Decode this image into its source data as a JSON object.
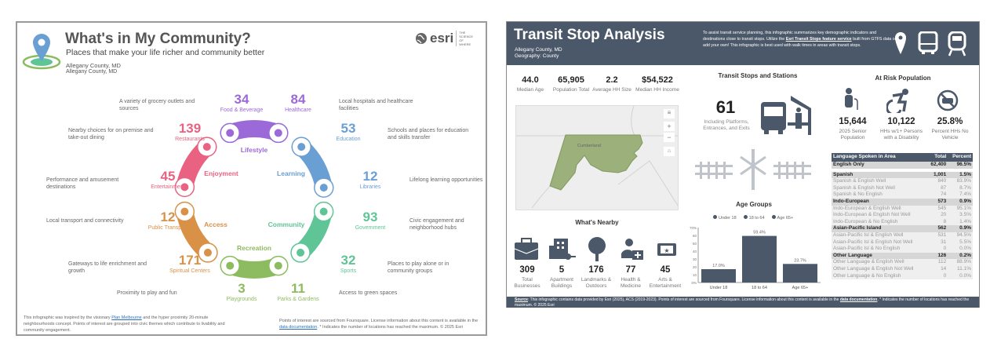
{
  "community": {
    "title": "What's in My Community?",
    "subtitle": "Places that make your life richer and community better",
    "location1": "Allegany County, MD",
    "location2": "Allegany County, MD",
    "logo_text": "esri",
    "logo_tagline": "THE SCIENCE OF WHERE",
    "themes": {
      "lifestyle": "Lifestyle",
      "learning": "Learning",
      "community": "Community",
      "recreation": "Recreation",
      "access": "Access",
      "enjoyment": "Enjoyment"
    },
    "items": [
      {
        "count": "34",
        "label": "Food & Beverage",
        "desc": "A variety of grocery outlets and sources"
      },
      {
        "count": "84",
        "label": "Healthcare",
        "desc": "Local hospitals and healthcare facilities"
      },
      {
        "count": "139",
        "label": "Restaurants",
        "desc": "Nearby choices for on premise and take-out dining"
      },
      {
        "count": "53",
        "label": "Education",
        "desc": "Schools and places for education and skills transfer"
      },
      {
        "count": "45",
        "label": "Entertainment",
        "desc": "Performance and amusement destinations"
      },
      {
        "count": "12",
        "label": "Libraries",
        "desc": "Lifelong learning opportunities"
      },
      {
        "count": "12",
        "label": "Public Transport",
        "desc": "Local transport and connectivity"
      },
      {
        "count": "93",
        "label": "Government",
        "desc": "Civic engagement and neighborhood hubs"
      },
      {
        "count": "171",
        "label": "Spiritual Centers",
        "desc": "Gateways to life enrichment and growth"
      },
      {
        "count": "32",
        "label": "Sports",
        "desc": "Places to play alone or in community groups"
      },
      {
        "count": "3",
        "label": "Playgrounds",
        "desc": "Proximity to play and fun"
      },
      {
        "count": "11",
        "label": "Parks & Gardens",
        "desc": "Access to green spaces"
      }
    ],
    "footer_left_pre": "This infographic was inspired by the visionary ",
    "footer_left_link": "Plan Melbourne",
    "footer_left_post": " and the hyper proximity 20-minute neighbourhoods concept. Points of interest are grouped into civic themes which contribute to livability and community engagement.",
    "footer_right_pre": "Points of interest are sourced from Foursquare. License information about this content is available in the ",
    "footer_right_link": "data documentation",
    "footer_right_post": ". * Indicates the number of locations has reached the maximum. © 2025 Esri",
    "colors": {
      "lifestyle": "#9b69d8",
      "learning": "#6a9fd3",
      "community": "#5fc597",
      "recreation": "#8cbc5f",
      "access": "#d99148",
      "enjoyment": "#ea6282"
    }
  },
  "transit": {
    "title": "Transit Stop Analysis",
    "location": "Allegany County, MD",
    "geography": "Geography: County",
    "intro_pre": "To assist transit service planning, this infographic summarizes key demographic indicators and destinations close to transit stops. Utilize the ",
    "intro_link": "Esri Transit Stops feature service",
    "intro_post": " built from GTFS data or add your own! This infographic is best used with walk times in areas with transit stops.",
    "stats": [
      {
        "value": "44.0",
        "label": "Median Age"
      },
      {
        "value": "65,905",
        "label": "Population Total"
      },
      {
        "value": "2.2",
        "label": "Average HH Size"
      },
      {
        "value": "$54,522",
        "label": "Median HH Income"
      }
    ],
    "map_label": "Cumberland",
    "stops_title": "Transit Stops and Stations",
    "stops_count": "61",
    "stops_label": "Including Platforms, Entrances, and Exits",
    "risk_title": "At Risk Population",
    "risk": [
      {
        "value": "15,644",
        "label": "2025 Senior Population"
      },
      {
        "value": "10,122",
        "label": "HHs w/1+ Persons with a Disability"
      },
      {
        "value": "25.8%",
        "label": "Percent HHs No Vehicle"
      }
    ],
    "nearby_title": "What's Nearby",
    "nearby": [
      {
        "value": "309",
        "label": "Total Businesses"
      },
      {
        "value": "5",
        "label": "Apartment Buildings"
      },
      {
        "value": "176",
        "label": "Landmarks & Outdoors"
      },
      {
        "value": "77",
        "label": "Health & Medicine"
      },
      {
        "value": "45",
        "label": "Arts & Entertainment"
      }
    ],
    "language": {
      "headers": [
        "Language Spoken in Area",
        "Total",
        "Percent"
      ],
      "rows": [
        {
          "t": "g",
          "name": "English Only",
          "total": "62,400",
          "pct": "96.5%"
        },
        {
          "t": "gap"
        },
        {
          "t": "g",
          "name": "Spanish",
          "total": "1,001",
          "pct": "1.5%"
        },
        {
          "t": "s",
          "name": "Spanish & English Well",
          "total": "840",
          "pct": "83.9%"
        },
        {
          "t": "s",
          "name": "Spanish & English Not Well",
          "total": "87",
          "pct": "8.7%"
        },
        {
          "t": "s",
          "name": "Spanish & No English",
          "total": "74",
          "pct": "7.4%"
        },
        {
          "t": "g",
          "name": "Indo-European",
          "total": "573",
          "pct": "0.9%"
        },
        {
          "t": "s",
          "name": "Indo-European & English Well",
          "total": "545",
          "pct": "95.1%"
        },
        {
          "t": "s",
          "name": "Indo-European & English Not Well",
          "total": "20",
          "pct": "3.5%"
        },
        {
          "t": "s",
          "name": "Indo-European & No English",
          "total": "8",
          "pct": "1.4%"
        },
        {
          "t": "g",
          "name": "Asian-Pacific Island",
          "total": "562",
          "pct": "0.9%"
        },
        {
          "t": "s",
          "name": "Asian-Pacific Isl & English Well",
          "total": "531",
          "pct": "94.5%"
        },
        {
          "t": "s",
          "name": "Asian-Pacific Isl & English Not Well",
          "total": "31",
          "pct": "5.5%"
        },
        {
          "t": "s",
          "name": "Asian-Pacific Isl & No English",
          "total": "0",
          "pct": "0.0%"
        },
        {
          "t": "g",
          "name": "Other Language",
          "total": "126",
          "pct": "0.2%"
        },
        {
          "t": "s",
          "name": "Other Language & English Well",
          "total": "112",
          "pct": "88.9%"
        },
        {
          "t": "s",
          "name": "Other Language & English Not Well",
          "total": "14",
          "pct": "11.1%"
        },
        {
          "t": "s",
          "name": "Other Language & No English",
          "total": "0",
          "pct": "0.0%"
        }
      ]
    },
    "footer_label": "Source",
    "footer_pre": ": This infographic contains data provided by Esri (2025), ACS (2019-2023). Points of interest are sourced from Foursquare. License information about this content is available in the ",
    "footer_link": "data documentation",
    "footer_post": ". * Indicates the number of locations has reached the maximum. © 2025 Esri",
    "header_color": "#4b5869"
  },
  "chart_data": {
    "type": "bar",
    "title": "Age Groups",
    "categories": [
      "Under 18",
      "18 to 64",
      "Age 65+"
    ],
    "values": [
      17.0,
      59.4,
      23.7
    ],
    "data_labels": [
      "17.0%",
      "59.4%",
      "23.7%"
    ],
    "legend": [
      "Under 18",
      "18 to 64",
      "Age 65+"
    ],
    "legend_position": "top",
    "ylim": [
      0,
      70
    ],
    "yticks": [
      "0%",
      "10",
      "20",
      "30",
      "40",
      "50",
      "60",
      "70%"
    ],
    "xlabel": "",
    "ylabel": "",
    "color": "#4b5869"
  }
}
